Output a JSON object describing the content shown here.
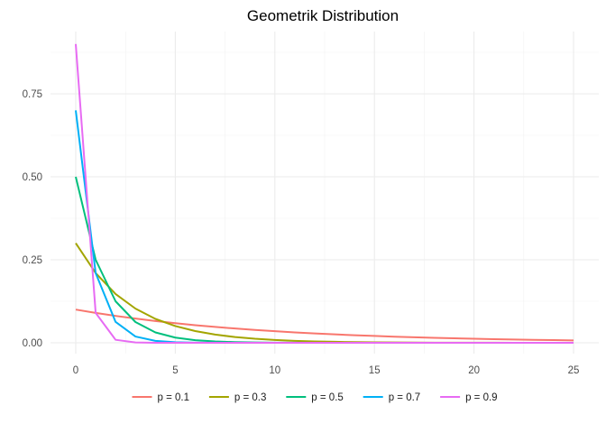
{
  "chart_data": {
    "type": "line",
    "title": "Geometrik Distribution",
    "xlabel": "",
    "ylabel": "",
    "xlim": [
      0,
      25
    ],
    "ylim": [
      0,
      0.9
    ],
    "x_ticks": [
      0,
      5,
      10,
      15,
      20,
      25
    ],
    "x_tick_labels": [
      "0",
      "5",
      "10",
      "15",
      "20",
      "25"
    ],
    "y_ticks": [
      0,
      0.25,
      0.5,
      0.75
    ],
    "y_tick_labels": [
      "0.00",
      "0.25",
      "0.50",
      "0.75"
    ],
    "grid": true,
    "legend_position": "bottom",
    "x": [
      0,
      1,
      2,
      3,
      4,
      5,
      6,
      7,
      8,
      9,
      10,
      11,
      12,
      13,
      14,
      15,
      16,
      17,
      18,
      19,
      20,
      21,
      22,
      23,
      24,
      25
    ],
    "series": [
      {
        "name": "p = 0.1",
        "color": "#F8766D",
        "values": [
          0.1,
          0.09,
          0.081,
          0.0729,
          0.0656,
          0.059,
          0.0531,
          0.0478,
          0.043,
          0.0387,
          0.0349,
          0.0314,
          0.0282,
          0.0254,
          0.0229,
          0.0206,
          0.0185,
          0.0167,
          0.015,
          0.0135,
          0.0122,
          0.0109,
          0.0098,
          0.0089,
          0.008,
          0.0072
        ]
      },
      {
        "name": "p = 0.3",
        "color": "#A3A500",
        "values": [
          0.3,
          0.21,
          0.147,
          0.1029,
          0.072,
          0.0504,
          0.0353,
          0.0247,
          0.0173,
          0.0121,
          0.0085,
          0.0059,
          0.0042,
          0.0029,
          0.002,
          0.0014,
          0.001,
          0.0007,
          0.0005,
          0.0003,
          0.0002,
          0.0002,
          0.0001,
          0.0001,
          0.0001,
          0.0
        ]
      },
      {
        "name": "p = 0.5",
        "color": "#00BF7D",
        "values": [
          0.5,
          0.25,
          0.125,
          0.0625,
          0.0313,
          0.0156,
          0.0078,
          0.0039,
          0.002,
          0.001,
          0.0005,
          0.0002,
          0.0001,
          0.0001,
          0.0,
          0.0,
          0.0,
          0.0,
          0.0,
          0.0,
          0.0,
          0.0,
          0.0,
          0.0,
          0.0,
          0.0
        ]
      },
      {
        "name": "p = 0.7",
        "color": "#00B0F6",
        "values": [
          0.7,
          0.21,
          0.063,
          0.0189,
          0.0057,
          0.0017,
          0.0005,
          0.0002,
          0.0,
          0.0,
          0.0,
          0.0,
          0.0,
          0.0,
          0.0,
          0.0,
          0.0,
          0.0,
          0.0,
          0.0,
          0.0,
          0.0,
          0.0,
          0.0,
          0.0,
          0.0
        ]
      },
      {
        "name": "p = 0.9",
        "color": "#E76BF3",
        "values": [
          0.9,
          0.09,
          0.009,
          0.0009,
          0.0001,
          0.0,
          0.0,
          0.0,
          0.0,
          0.0,
          0.0,
          0.0,
          0.0,
          0.0,
          0.0,
          0.0,
          0.0,
          0.0,
          0.0,
          0.0,
          0.0,
          0.0,
          0.0,
          0.0,
          0.0,
          0.0
        ]
      }
    ]
  }
}
